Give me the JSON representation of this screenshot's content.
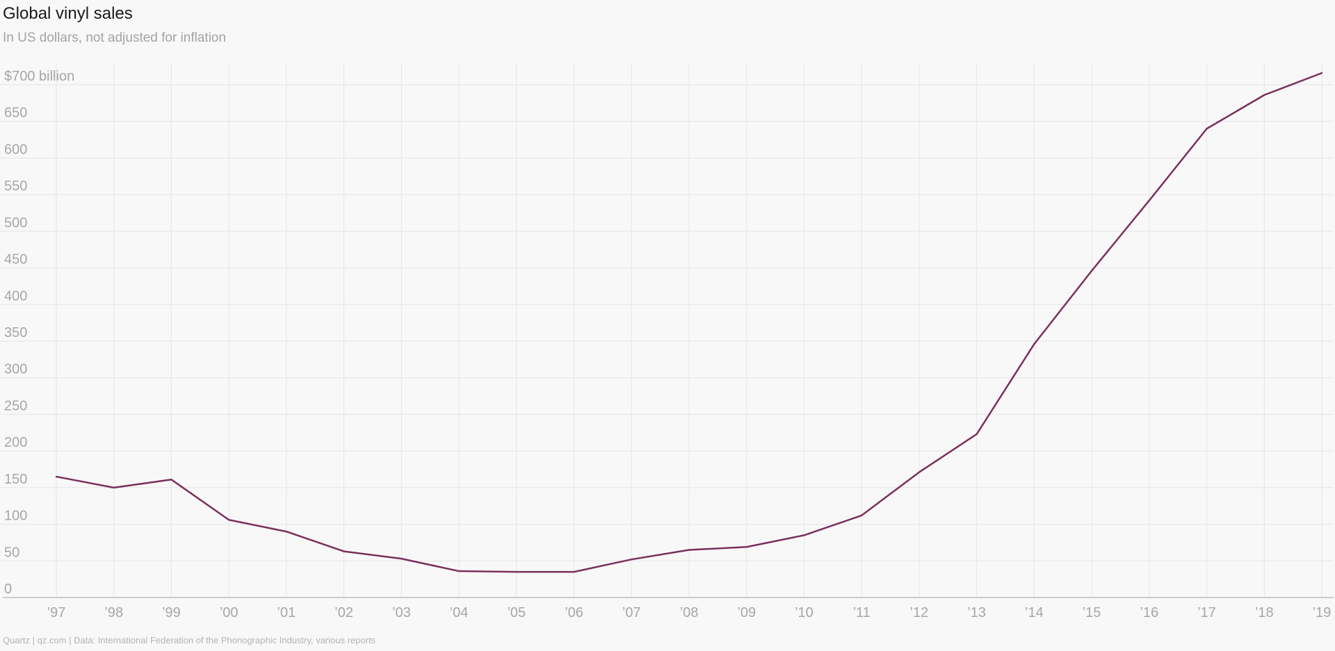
{
  "chart_data": {
    "type": "line",
    "title": "Global vinyl sales",
    "subtitle": "In US dollars, not adjusted for inflation",
    "x": [
      "’97",
      "’98",
      "’99",
      "’00",
      "’01",
      "’02",
      "’03",
      "’04",
      "’05",
      "’06",
      "’07",
      "’08",
      "’09",
      "’10",
      "’11",
      "’12",
      "’13",
      "’14",
      "’15",
      "’16",
      "’17",
      "’18",
      "’19"
    ],
    "series": [
      {
        "values": [
          165,
          150,
          161,
          106,
          90,
          63,
          53,
          36,
          35,
          35,
          52,
          65,
          69,
          85,
          112,
          171,
          223,
          346,
          446,
          542,
          640,
          686,
          716
        ]
      }
    ],
    "y_ticks": [
      0,
      50,
      100,
      150,
      200,
      250,
      300,
      350,
      400,
      450,
      500,
      550,
      600,
      650,
      700
    ],
    "y_tick_labels": [
      "0",
      "50",
      "100",
      "150",
      "200",
      "250",
      "300",
      "350",
      "400",
      "450",
      "500",
      "550",
      "600",
      "650",
      "$700 billion"
    ],
    "ylim": [
      0,
      700
    ],
    "grid": true,
    "legend": "none"
  },
  "colors": {
    "line": "#7a2f5c",
    "grid": "#e5e5e5",
    "axis": "#bdbdbd",
    "tick_text": "#a6a6a6"
  },
  "footer": {
    "source": "Quartz | qz.com | Data: International Federation of the Phonographic Industry, various reports"
  }
}
